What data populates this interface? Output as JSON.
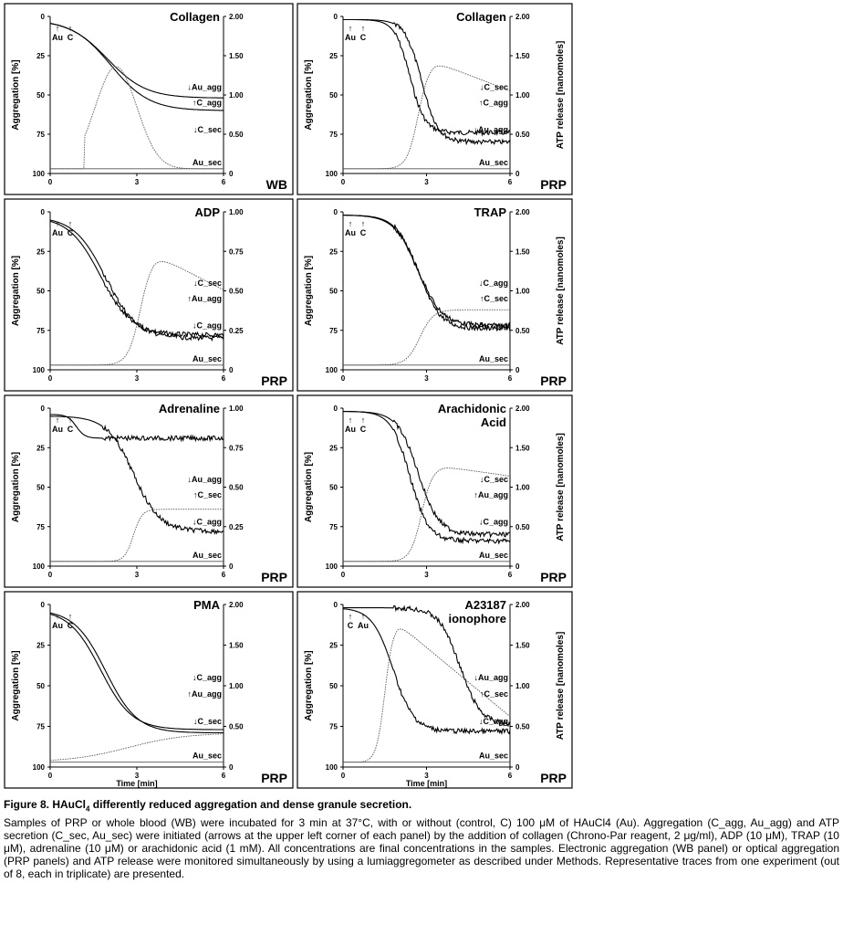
{
  "figure": {
    "y_axis_left_label": "Aggregation [%]",
    "y_axis_right_label": "ATP release [nanomoles]",
    "x_axis_label": "Time [min]",
    "x_ticks": [
      "0",
      "3",
      "6"
    ],
    "y_left_ticks": [
      "0",
      "25",
      "50",
      "75",
      "100"
    ],
    "y_right_ticks": [
      "2.00",
      "1.50",
      "1.00",
      "0.50",
      "0"
    ],
    "y_right_ticks_alt": [
      "1.00",
      "0.75",
      "0.50",
      "0.25",
      "0"
    ],
    "panels": [
      {
        "title": "Collagen",
        "sample": "WB",
        "labels": [
          "Au_agg",
          "C_agg",
          "C_sec",
          "Au_sec"
        ],
        "markers": [
          "Au",
          "C"
        ]
      },
      {
        "title": "Collagen",
        "sample": "PRP",
        "labels": [
          "C_sec",
          "C_agg",
          "Au_agg",
          "Au_sec"
        ],
        "markers": [
          "Au",
          "C"
        ]
      },
      {
        "title": "ADP",
        "sample": "PRP",
        "labels": [
          "C_sec",
          "Au_agg",
          "C_agg",
          "Au_sec"
        ],
        "markers": [
          "Au",
          "C"
        ]
      },
      {
        "title": "TRAP",
        "sample": "PRP",
        "labels": [
          "C_agg",
          "C_sec",
          "Au_agg",
          "Au_sec"
        ],
        "markers": [
          "Au",
          "C"
        ]
      },
      {
        "title": "Adrenaline",
        "sample": "PRP",
        "labels": [
          "Au_agg",
          "C_sec",
          "C_agg",
          "Au_sec"
        ],
        "markers": [
          "Au",
          "C"
        ]
      },
      {
        "title": "Arachidonic Acid",
        "title_lines": [
          "Arachidonic",
          "Acid"
        ],
        "sample": "PRP",
        "labels": [
          "C_sec",
          "Au_agg",
          "C_agg",
          "Au_sec"
        ],
        "markers": [
          "Au",
          "C"
        ]
      },
      {
        "title": "PMA",
        "sample": "PRP",
        "labels": [
          "C_agg",
          "Au_agg",
          "C_sec",
          "Au_sec"
        ],
        "markers": [
          "Au",
          "C"
        ]
      },
      {
        "title": "A23187 ionophore",
        "title_lines": [
          "A23187",
          "ionophore"
        ],
        "sample": "PRP",
        "labels": [
          "Au_agg",
          "C_sec",
          "C_agg",
          "Au_sec"
        ],
        "markers": [
          "C",
          "Au"
        ]
      }
    ]
  },
  "caption": {
    "title_prefix": "Figure 8. HAuCl",
    "title_sub": "4",
    "title_suffix": " differently reduced aggregation and dense granule secretion.",
    "body": "Samples of PRP or whole blood (WB) were incubated for 3 min at 37°C, with or without (control, C) 100 μM of HAuCl4 (Au). Aggregation (C_agg, Au_agg) and ATP secretion (C_sec, Au_sec) were initiated (arrows at the upper left corner of each panel) by the addition of collagen (Chrono-Par reagent, 2 μg/ml), ADP (10 μM), TRAP (10 μM), adrenaline (10 μM) or arachidonic acid (1 mM). All concentrations are final concentrations in the samples. Electronic aggregation (WB panel) or optical aggregation (PRP panels) and ATP release were monitored simultaneously by using a lumiaggregometer as described under Methods. Representative traces from one experiment (out of 8, each in triplicate) are presented."
  }
}
